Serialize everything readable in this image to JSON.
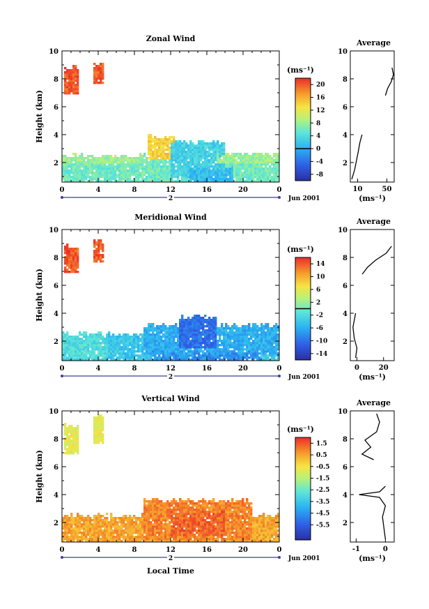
{
  "xlabel": "Local Time",
  "date_label": "Jun 2001",
  "day_label": "2",
  "ylabel": "Height (km)",
  "unit_label": "(ms⁻¹)",
  "avg_xlabel": "(ms⁻¹)",
  "avg_title": "Average",
  "chart_data": [
    {
      "type": "heatmap",
      "title": "Zonal Wind",
      "xlabel": "Local Time",
      "ylabel": "Height (km)",
      "x_ticks": [
        "0",
        "4",
        "8",
        "12",
        "16",
        "20",
        "0"
      ],
      "y_ticks": [
        "2",
        "4",
        "6",
        "8",
        "10"
      ],
      "xlim": [
        0,
        24
      ],
      "ylim": [
        0.6,
        10
      ],
      "colorbar": {
        "unit": "(ms⁻¹)",
        "range": [
          -10,
          22
        ],
        "ticks": [
          "20",
          "16",
          "12",
          "8",
          "4",
          "0",
          "-4",
          "-8"
        ],
        "contour_at": 0
      },
      "regions": [
        {
          "t0": 0.2,
          "t1": 1.8,
          "h0": 6.9,
          "h1": 8.8,
          "v": 20
        },
        {
          "t0": 3.5,
          "t1": 4.6,
          "h0": 7.6,
          "h1": 9.2,
          "v": 20
        },
        {
          "t0": 0,
          "t1": 24,
          "h0": 0.6,
          "h1": 2.5,
          "v": 6
        },
        {
          "t0": 0,
          "t1": 9,
          "h0": 1.9,
          "h1": 2.5,
          "v": 8
        },
        {
          "t0": 9.5,
          "t1": 12.5,
          "h0": 2.2,
          "h1": 3.9,
          "v": 14
        },
        {
          "t0": 12,
          "t1": 18,
          "h0": 0.9,
          "h1": 3.5,
          "v": 3
        },
        {
          "t0": 14,
          "t1": 19,
          "h0": 0.6,
          "h1": 1.6,
          "v": 1
        },
        {
          "t0": 17,
          "t1": 24,
          "h0": 1.9,
          "h1": 2.6,
          "v": 8
        }
      ],
      "average_profile": {
        "x_ticks": [
          "10",
          "50"
        ],
        "xlim": [
          0,
          60
        ],
        "y_ticks": [
          "2",
          "4",
          "6",
          "8",
          "10"
        ],
        "points": [
          [
            2,
            0.8
          ],
          [
            6,
            1.5
          ],
          [
            9,
            2.3
          ],
          [
            11,
            2.8
          ],
          [
            13,
            3.4
          ],
          [
            16,
            4.0
          ],
          [
            null,
            null
          ],
          [
            48,
            6.8
          ],
          [
            51,
            7.3
          ],
          [
            56,
            7.8
          ],
          [
            59,
            8.3
          ],
          [
            57,
            8.8
          ]
        ]
      }
    },
    {
      "type": "heatmap",
      "title": "Meridional Wind",
      "xlabel": "Local Time",
      "ylabel": "Height (km)",
      "x_ticks": [
        "0",
        "4",
        "8",
        "12",
        "16",
        "20",
        "0"
      ],
      "y_ticks": [
        "2",
        "4",
        "6",
        "8",
        "10"
      ],
      "xlim": [
        0,
        24
      ],
      "ylim": [
        0.6,
        10
      ],
      "colorbar": {
        "unit": "(ms⁻¹)",
        "range": [
          -16,
          16
        ],
        "ticks": [
          "14",
          "10",
          "6",
          "2",
          "-2",
          "-6",
          "-10",
          "-14"
        ],
        "contour_at": 0
      },
      "regions": [
        {
          "t0": 0.2,
          "t1": 1.8,
          "h0": 6.9,
          "h1": 8.8,
          "v": 14
        },
        {
          "t0": 3.5,
          "t1": 4.6,
          "h0": 7.6,
          "h1": 9.2,
          "v": 14
        },
        {
          "t0": 0,
          "t1": 24,
          "h0": 0.6,
          "h1": 2.5,
          "v": -4
        },
        {
          "t0": 0,
          "t1": 5,
          "h0": 0.8,
          "h1": 2.5,
          "v": -2
        },
        {
          "t0": 9,
          "t1": 24,
          "h0": 1.0,
          "h1": 3.2,
          "v": -6
        },
        {
          "t0": 13,
          "t1": 17,
          "h0": 1.5,
          "h1": 3.8,
          "v": -10
        },
        {
          "t0": 10,
          "t1": 22,
          "h0": 0.6,
          "h1": 1.2,
          "v": -8
        }
      ],
      "average_profile": {
        "x_ticks": [
          "0",
          "20"
        ],
        "xlim": [
          -5,
          28
        ],
        "y_ticks": [
          "2",
          "4",
          "6",
          "8",
          "10"
        ],
        "points": [
          [
            -1,
            0.8
          ],
          [
            0,
            1.5
          ],
          [
            -2,
            2.2
          ],
          [
            -3,
            3.0
          ],
          [
            -1,
            4.0
          ],
          [
            null,
            null
          ],
          [
            4,
            6.8
          ],
          [
            8,
            7.3
          ],
          [
            14,
            7.8
          ],
          [
            22,
            8.3
          ],
          [
            26,
            8.8
          ]
        ]
      }
    },
    {
      "type": "heatmap",
      "title": "Vertical Wind",
      "xlabel": "Local Time",
      "ylabel": "Height (km)",
      "x_ticks": [
        "0",
        "4",
        "8",
        "12",
        "16",
        "20",
        "0"
      ],
      "y_ticks": [
        "2",
        "4",
        "6",
        "8",
        "10"
      ],
      "xlim": [
        0,
        24
      ],
      "ylim": [
        0.6,
        10
      ],
      "colorbar": {
        "unit": "(ms⁻¹)",
        "range": [
          -6.8,
          2.0
        ],
        "ticks": [
          "1.5",
          "0.5",
          "-0.5",
          "-1.5",
          "-2.5",
          "-3.5",
          "-4.5",
          "-5.5"
        ]
      },
      "regions": [
        {
          "t0": 0.2,
          "t1": 1.8,
          "h0": 6.9,
          "h1": 9.0,
          "v": -0.8
        },
        {
          "t0": 3.5,
          "t1": 4.6,
          "h0": 7.6,
          "h1": 9.6,
          "v": -0.8
        },
        {
          "t0": 0,
          "t1": 24,
          "h0": 0.6,
          "h1": 2.5,
          "v": 0.5
        },
        {
          "t0": 9,
          "t1": 21,
          "h0": 0.8,
          "h1": 3.6,
          "v": 0.9
        },
        {
          "t0": 12,
          "t1": 18,
          "h0": 1.0,
          "h1": 2.8,
          "v": 1.3
        }
      ],
      "average_profile": {
        "x_ticks": [
          "-1",
          "0"
        ],
        "xlim": [
          -1.2,
          0.3
        ],
        "y_ticks": [
          "2",
          "4",
          "6",
          "8",
          "10"
        ],
        "points": [
          [
            0,
            0.8
          ],
          [
            -0.05,
            1.6
          ],
          [
            -0.1,
            2.4
          ],
          [
            0,
            3.2
          ],
          [
            -0.2,
            3.8
          ],
          [
            -0.9,
            4.0
          ],
          [
            -0.2,
            4.2
          ],
          [
            0,
            4.6
          ],
          [
            null,
            null
          ],
          [
            -0.4,
            6.5
          ],
          [
            -0.8,
            6.9
          ],
          [
            -0.5,
            7.4
          ],
          [
            -0.7,
            7.9
          ],
          [
            -0.3,
            8.5
          ],
          [
            -0.2,
            9.2
          ],
          [
            -0.3,
            9.8
          ]
        ]
      }
    }
  ]
}
